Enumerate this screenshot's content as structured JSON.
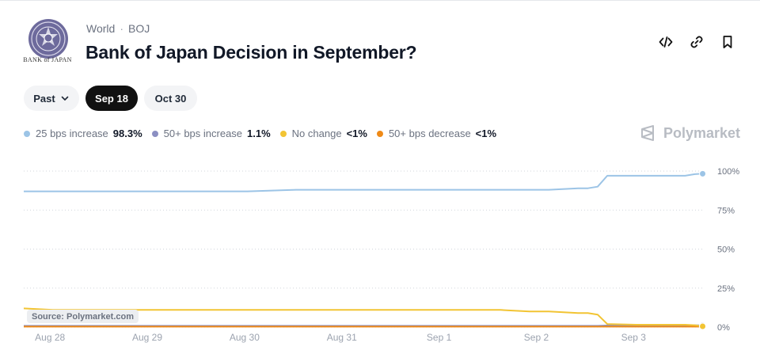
{
  "header": {
    "logo_caption": "BANK of JAPAN",
    "category": "World",
    "separator": "·",
    "tag": "BOJ",
    "title": "Bank of Japan Decision in September?"
  },
  "actions": [
    {
      "icon": "code-embed-icon"
    },
    {
      "icon": "link-icon"
    },
    {
      "icon": "bookmark-icon"
    }
  ],
  "filters": {
    "past": "Past",
    "date1": "Sep 18",
    "date2": "Oct 30",
    "selected": "Sep 18"
  },
  "legend": [
    {
      "label": "25 bps increase",
      "value": "98.3%",
      "color": "#9cc4e6"
    },
    {
      "label": "50+ bps increase",
      "value": "1.1%",
      "color": "#8b8fc2"
    },
    {
      "label": "No change",
      "value": "<1%",
      "color": "#f2c433"
    },
    {
      "label": "50+ bps decrease",
      "value": "<1%",
      "color": "#ef8a17"
    }
  ],
  "brand": "Polymarket",
  "source": "Source: Polymarket.com",
  "chart_data": {
    "type": "line",
    "x_ticks": [
      "Aug 28",
      "Aug 29",
      "Aug 30",
      "Aug 31",
      "Sep 1",
      "Sep 2",
      "Sep 3"
    ],
    "y_ticks": [
      "100%",
      "75%",
      "50%",
      "25%",
      "0%"
    ],
    "ylim": [
      0,
      100
    ],
    "grid": true,
    "legend_position": "top-left",
    "x": [
      0,
      0.3,
      0.8,
      1.2,
      1.8,
      2.3,
      2.8,
      3.3,
      4.0,
      4.6,
      4.9,
      5.2,
      5.4,
      5.7,
      5.8,
      5.9,
      6.0,
      6.3,
      6.6,
      6.8,
      6.9,
      6.98
    ],
    "series": [
      {
        "name": "25 bps increase",
        "color": "#9cc4e6",
        "values": [
          87,
          87,
          87,
          87,
          87,
          87,
          88,
          88,
          88,
          88,
          88,
          88,
          88,
          89,
          89,
          90,
          97,
          97,
          97,
          97,
          98,
          98.3
        ]
      },
      {
        "name": "50+ bps increase",
        "color": "#8b8fc2",
        "values": [
          0.8,
          0.8,
          0.8,
          0.8,
          0.8,
          0.8,
          0.8,
          0.8,
          0.8,
          0.8,
          0.8,
          0.8,
          0.8,
          0.8,
          0.8,
          0.8,
          1.0,
          1.0,
          1.0,
          1.0,
          1.1,
          1.1
        ]
      },
      {
        "name": "No change",
        "color": "#f2c433",
        "values": [
          12,
          11,
          11,
          11,
          11,
          11,
          11,
          11,
          11,
          11,
          11,
          10,
          10,
          9,
          9,
          8,
          2,
          1.5,
          1.5,
          1.5,
          1.2,
          0.5
        ]
      },
      {
        "name": "50+ bps decrease",
        "color": "#ef8a17",
        "values": [
          0.3,
          0.3,
          0.3,
          0.3,
          0.3,
          0.3,
          0.3,
          0.3,
          0.3,
          0.3,
          0.3,
          0.3,
          0.3,
          0.3,
          0.3,
          0.3,
          0.3,
          0.3,
          0.3,
          0.3,
          0.3,
          0.3
        ]
      }
    ]
  }
}
